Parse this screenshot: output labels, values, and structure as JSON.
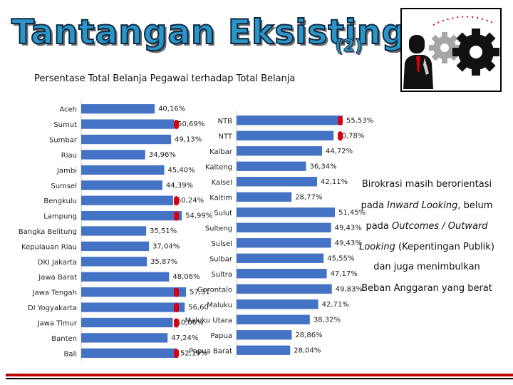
{
  "header": {
    "title": "Tantangan Eksisting",
    "title_number": "(2)",
    "subtitle": "Persentase Total Belanja Pegawai terhadap Total Belanja"
  },
  "logo": {
    "icon": "businessman-with-gears-icon"
  },
  "colors": {
    "bar": "#4472c4",
    "marker": "#d9000d",
    "title_fill": "#2c95c8",
    "title_outline": "#0d2a44",
    "rule": "#c00000"
  },
  "right_text": {
    "line1": "Birokrasi masih berorientasi",
    "line2_pre": "pada ",
    "line2_em": "Inward Looking",
    "line2_post": ", belum",
    "line3_pre": "pada ",
    "line3_em": "Outcomes / Outward",
    "line4_em": "Looking",
    "line4_post": " (Kepentingan Publik)",
    "line5": "dan juga menimbulkan",
    "line6": "Beban Anggaran yang berat"
  },
  "chart_data": [
    {
      "type": "bar",
      "orientation": "horizontal",
      "categories": [
        "Aceh",
        "Sumut",
        "Sumbar",
        "Riau",
        "Jambi",
        "Sumsel",
        "Bengkulu",
        "Lampung",
        "Bangka Belitung",
        "Kepulauan Riau",
        "DKI Jakarta",
        "Jawa Barat",
        "Jawa Tengah",
        "DI Yogyakarta",
        "Jawa Timur",
        "Banten",
        "Bali"
      ],
      "values": [
        40.16,
        50.69,
        49.13,
        34.96,
        45.4,
        44.39,
        50.24,
        54.99,
        35.51,
        37.04,
        35.87,
        48.06,
        57.31,
        56.6,
        50.06,
        47.24,
        52.19
      ],
      "data_labels": [
        "40,16%",
        "50,69%",
        "49,13%",
        "34,96%",
        "45,40%",
        "44,39%",
        "50,24%",
        "54,99%",
        "35,51%",
        "37,04%",
        "35,87%",
        "48,06%",
        "57,31",
        "56,60",
        "50,06%",
        "47,24%",
        "52,19%"
      ],
      "highlighted": [
        false,
        true,
        false,
        false,
        false,
        false,
        true,
        true,
        false,
        false,
        false,
        false,
        true,
        true,
        true,
        false,
        true
      ],
      "xlim": [
        0,
        60
      ],
      "grid": false,
      "legend": "none"
    },
    {
      "type": "bar",
      "orientation": "horizontal",
      "categories": [
        "NTB",
        "NTT",
        "Kalbar",
        "Kalteng",
        "Kalsel",
        "Kaltim",
        "Sulut",
        "Sulteng",
        "Sulsel",
        "Sulbar",
        "Sultra",
        "Gorontalo",
        "Maluku",
        "Maluku Utara",
        "Papua",
        "Papua Barat"
      ],
      "values": [
        55.53,
        50.78,
        44.72,
        36.34,
        42.11,
        28.77,
        51.45,
        49.43,
        49.43,
        45.55,
        47.17,
        49.83,
        42.71,
        38.32,
        28.86,
        28.04
      ],
      "data_labels": [
        "55,53%",
        "50,78%",
        "44,72%",
        "36,34%",
        "42,11%",
        "28,77%",
        "51,45%",
        "49,43%",
        "49,43%",
        "45,55%",
        "47,17%",
        "49,83%",
        "42,71%",
        "38,32%",
        "28,86%",
        "28,04%"
      ],
      "highlighted": [
        true,
        true,
        false,
        false,
        false,
        false,
        false,
        false,
        false,
        false,
        false,
        false,
        false,
        false,
        false,
        false
      ],
      "xlim": [
        0,
        60
      ],
      "grid": false,
      "legend": "none"
    }
  ]
}
